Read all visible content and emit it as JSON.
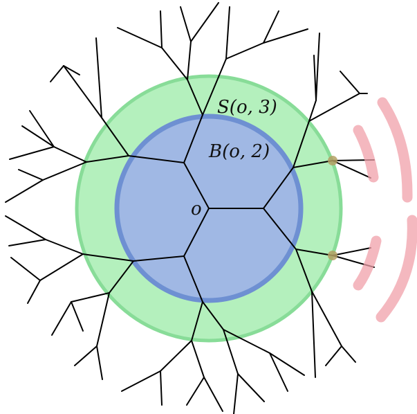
{
  "diagram": {
    "sphere_label": "S(o, 3)",
    "ball_label": "B(o, 2)",
    "origin_label": "o"
  },
  "colors": {
    "sphere_fill": "#b4f0bd",
    "sphere_stroke": "#88dc98",
    "ball_fill": "#a0b8e4",
    "ball_stroke": "#6e90d2",
    "edge": "#000000",
    "highlight": "#f0a0aa",
    "junction": "#b4a064"
  }
}
